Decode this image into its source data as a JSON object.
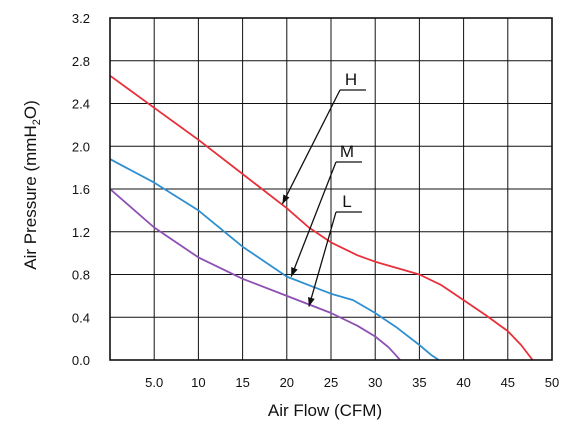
{
  "chart_data": {
    "type": "line",
    "xlabel": "Air Flow (CFM)",
    "ylabel": {
      "prefix": "Air Pressure (mmH",
      "sub": "2",
      "suffix": "O)"
    },
    "xlim": [
      0,
      50
    ],
    "ylim": [
      0,
      3.2
    ],
    "grid": true,
    "x_ticks": [
      5,
      10,
      15,
      20,
      25,
      30,
      35,
      40,
      45,
      50
    ],
    "x_tick_labels": [
      "5.0",
      "10",
      "15",
      "20",
      "25",
      "30",
      "35",
      "40",
      "45",
      "50"
    ],
    "y_ticks": [
      0,
      0.4,
      0.8,
      1.2,
      1.6,
      2.0,
      2.4,
      2.8,
      3.2
    ],
    "y_tick_labels": [
      "0.0",
      "0.4",
      "0.8",
      "1.2",
      "1.6",
      "2.0",
      "2.4",
      "2.8",
      "3.2"
    ],
    "series": [
      {
        "name": "H",
        "color": "#e8303a",
        "points": [
          [
            0,
            2.66
          ],
          [
            5,
            2.36
          ],
          [
            10,
            2.06
          ],
          [
            15,
            1.74
          ],
          [
            20,
            1.42
          ],
          [
            22.5,
            1.24
          ],
          [
            25,
            1.1
          ],
          [
            28,
            0.98
          ],
          [
            30,
            0.92
          ],
          [
            32.5,
            0.86
          ],
          [
            35,
            0.8
          ],
          [
            37.5,
            0.7
          ],
          [
            40,
            0.56
          ],
          [
            42.5,
            0.42
          ],
          [
            45,
            0.27
          ],
          [
            46.5,
            0.14
          ],
          [
            47.8,
            0.0
          ]
        ],
        "callout_point": [
          19.5,
          1.46
        ]
      },
      {
        "name": "M",
        "color": "#2f8fd0",
        "points": [
          [
            0,
            1.88
          ],
          [
            5,
            1.66
          ],
          [
            10,
            1.4
          ],
          [
            15,
            1.06
          ],
          [
            20,
            0.78
          ],
          [
            22.5,
            0.7
          ],
          [
            25,
            0.62
          ],
          [
            27.5,
            0.56
          ],
          [
            30,
            0.44
          ],
          [
            32.5,
            0.3
          ],
          [
            35,
            0.14
          ],
          [
            36.3,
            0.05
          ],
          [
            37.2,
            0.0
          ]
        ],
        "callout_point": [
          20.5,
          0.78
        ]
      },
      {
        "name": "L",
        "color": "#8e4fb3",
        "points": [
          [
            0,
            1.6
          ],
          [
            5,
            1.24
          ],
          [
            10,
            0.96
          ],
          [
            15,
            0.76
          ],
          [
            20,
            0.6
          ],
          [
            25,
            0.44
          ],
          [
            28,
            0.32
          ],
          [
            30,
            0.22
          ],
          [
            31.5,
            0.12
          ],
          [
            32.5,
            0.03
          ],
          [
            32.8,
            0.0
          ]
        ],
        "callout_point": [
          22.5,
          0.5
        ]
      }
    ]
  }
}
